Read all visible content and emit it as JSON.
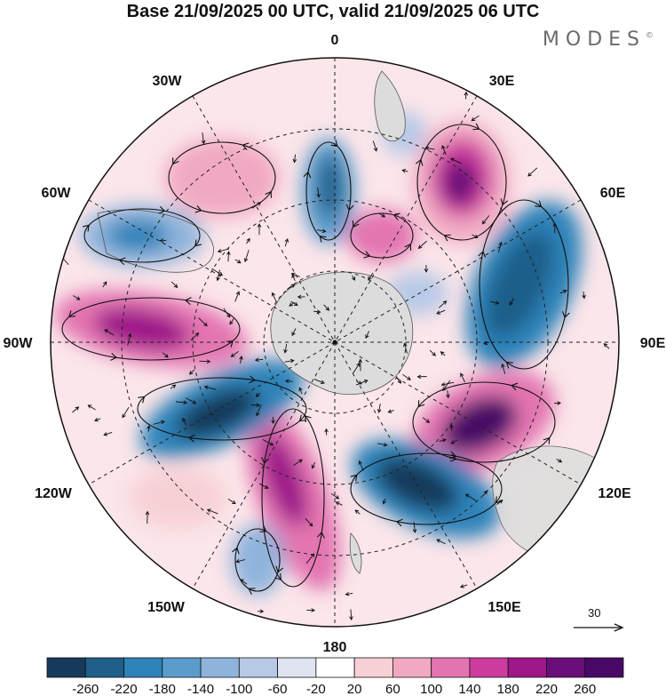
{
  "title": "Base 21/09/2025 00 UTC, valid 21/09/2025 06 UTC",
  "brand": "MODES",
  "brand_mark": "©",
  "longitude_labels": {
    "n": "0",
    "ne": "30E",
    "e1": "60E",
    "e": "90E",
    "se1": "120E",
    "se": "150E",
    "s": "180",
    "sw": "150W",
    "sw1": "120W",
    "w": "90W",
    "nw1": "60W",
    "nw": "30W"
  },
  "wind_scale": {
    "label": "30"
  },
  "colorbar": {
    "ticks": [
      "-260",
      "-220",
      "-180",
      "-140",
      "-100",
      "-60",
      "-20",
      "20",
      "60",
      "100",
      "140",
      "180",
      "220",
      "260"
    ],
    "colors": [
      "#173a5c",
      "#1f5f8a",
      "#2e83b9",
      "#5b9ccc",
      "#8fb4dc",
      "#b8c9e6",
      "#e0e3f0",
      "#ffffff",
      "#f7d0d6",
      "#f1a9c3",
      "#e374b1",
      "#cd3b9e",
      "#9e1889",
      "#6a0f7a",
      "#4a0866"
    ]
  },
  "colors": {
    "land": "#dcdcdc",
    "coast": "#555555",
    "grid": "#222222"
  }
}
